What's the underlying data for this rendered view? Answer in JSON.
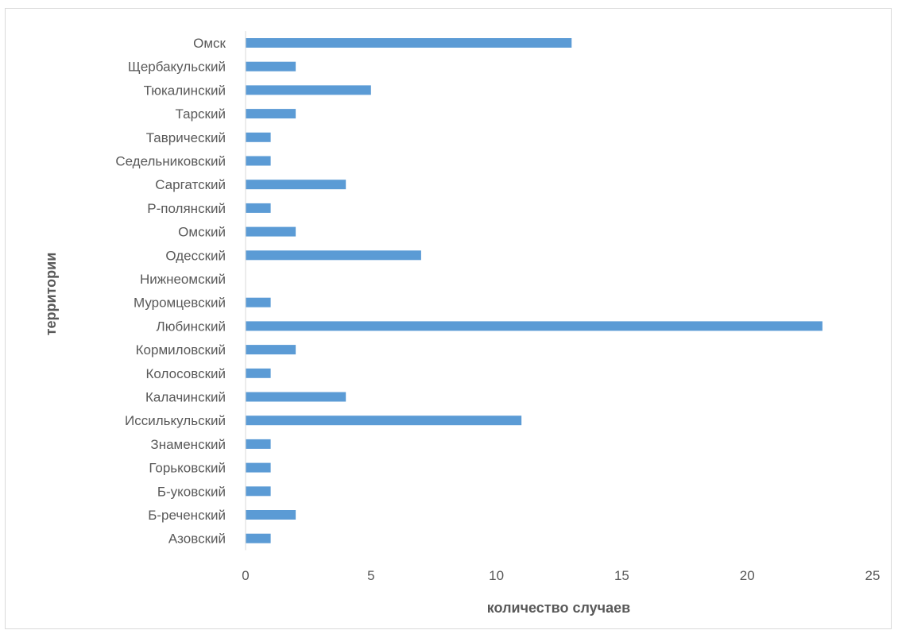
{
  "chart_data": {
    "type": "bar",
    "orientation": "horizontal",
    "title": "",
    "xlabel": "количество случаев",
    "ylabel": "территории",
    "xlim": [
      0,
      25
    ],
    "x_ticks": [
      0,
      5,
      10,
      15,
      20,
      25
    ],
    "grid": false,
    "legend": "none",
    "bar_color": "#5b9bd5",
    "categories": [
      "Омск",
      "Щербакульский",
      "Тюкалинский",
      "Тарский",
      "Таврический",
      "Седельниковский",
      "Саргатский",
      "Р-полянский",
      "Омский",
      "Одесский",
      "Нижнеомский",
      "Муромцевский",
      "Любинский",
      "Кормиловский",
      "Колосовский",
      "Калачинский",
      "Иссилькульский",
      "Знаменский",
      "Горьковский",
      "Б-уковский",
      "Б-реченский",
      "Азовский"
    ],
    "values": [
      13,
      2,
      5,
      2,
      1,
      1,
      4,
      1,
      2,
      7,
      0,
      1,
      23,
      2,
      1,
      4,
      11,
      1,
      1,
      1,
      2,
      1
    ]
  }
}
